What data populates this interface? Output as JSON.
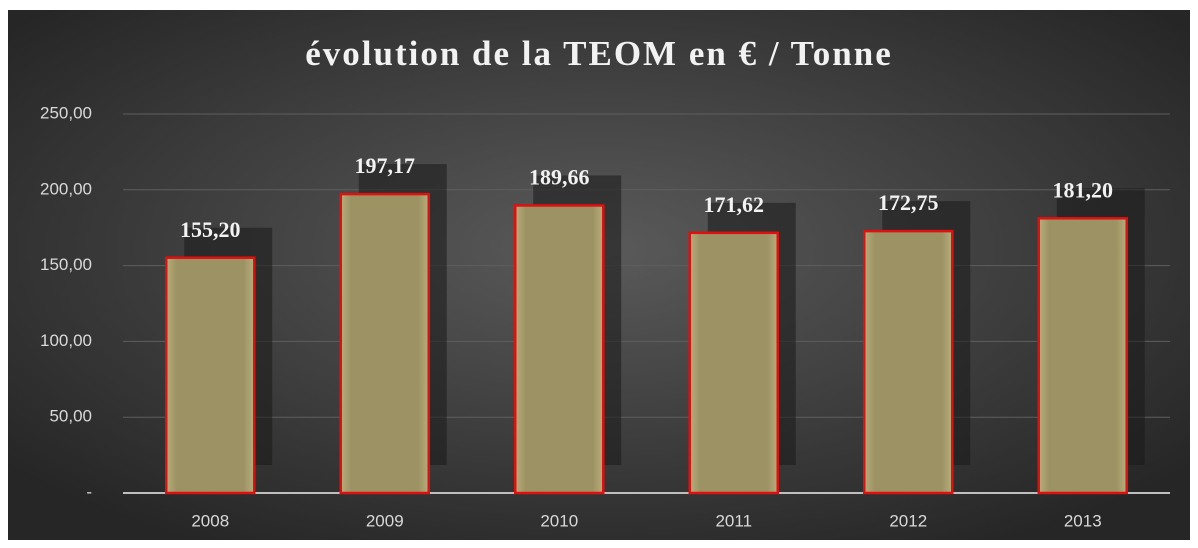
{
  "chart_data": {
    "type": "bar",
    "title": "évolution de la TEOM en € / Tonne",
    "categories": [
      "2008",
      "2009",
      "2010",
      "2011",
      "2012",
      "2013"
    ],
    "values": [
      155.2,
      197.17,
      189.66,
      171.62,
      172.75,
      181.2
    ],
    "value_labels": [
      "155,20",
      "197,17",
      "189,66",
      "171,62",
      "172,75",
      "181,20"
    ],
    "color": "#9d9263",
    "edge_color": "#e01010",
    "ylim": [
      0,
      250
    ],
    "yticks": [
      {
        "value": 0,
        "label": "-"
      },
      {
        "value": 50,
        "label": "50,00"
      },
      {
        "value": 100,
        "label": "100,00"
      },
      {
        "value": 150,
        "label": "150,00"
      },
      {
        "value": 200,
        "label": "200,00"
      },
      {
        "value": 250,
        "label": "250,00"
      }
    ],
    "grid": true
  }
}
